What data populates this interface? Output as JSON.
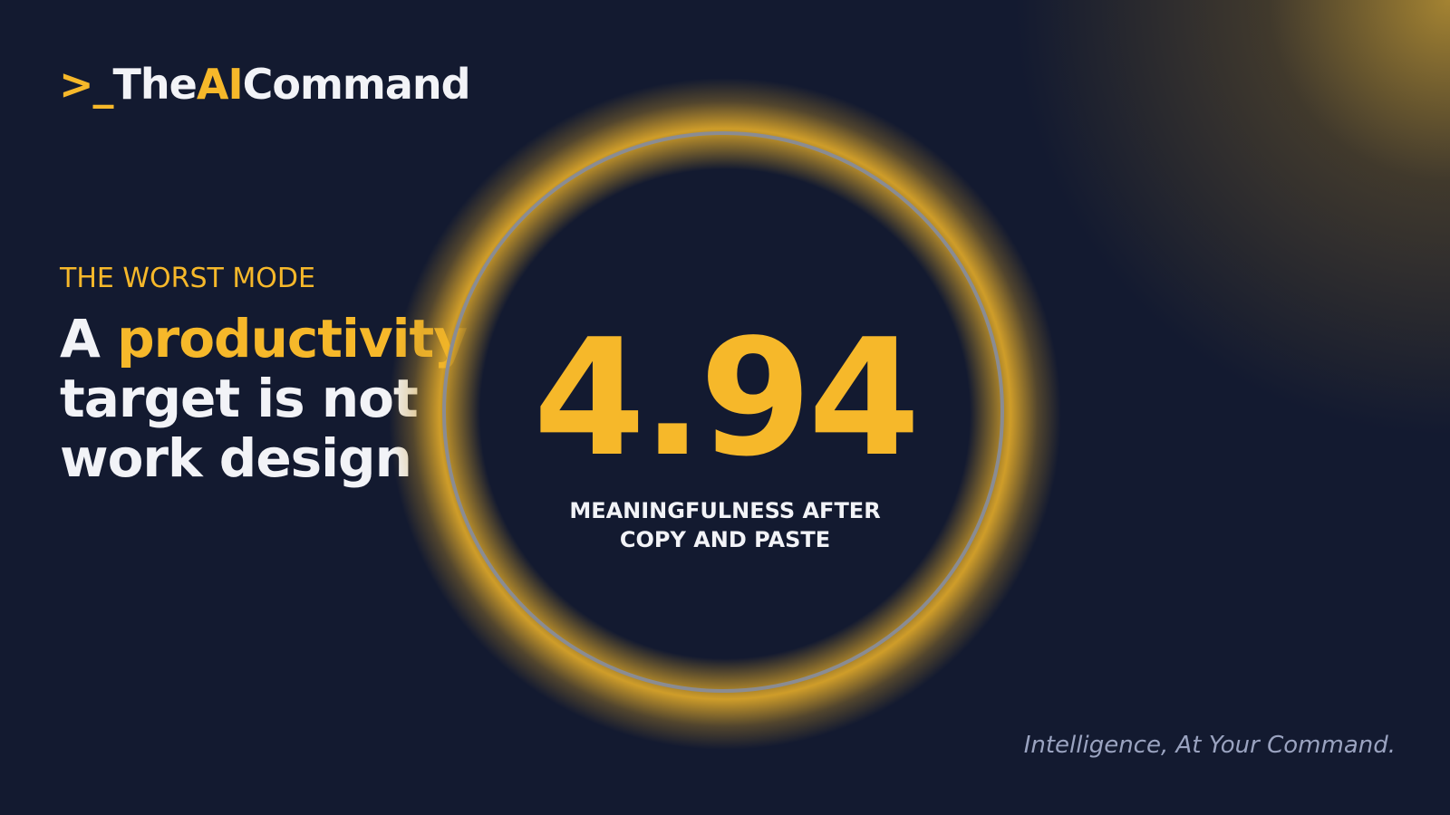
{
  "logo": {
    "prompt": ">_",
    "part1": "The",
    "part2": "AI",
    "part3": "Command"
  },
  "kicker": "THE WORST MODE",
  "headline": {
    "lead": "A",
    "highlight": "productivity",
    "line2": "target is not",
    "line3": "work design"
  },
  "stat": {
    "value": 4.94,
    "label_line1": "MEANINGFULNESS AFTER",
    "label_line2": "COPY AND PASTE"
  },
  "tagline": "Intelligence, At Your Command."
}
